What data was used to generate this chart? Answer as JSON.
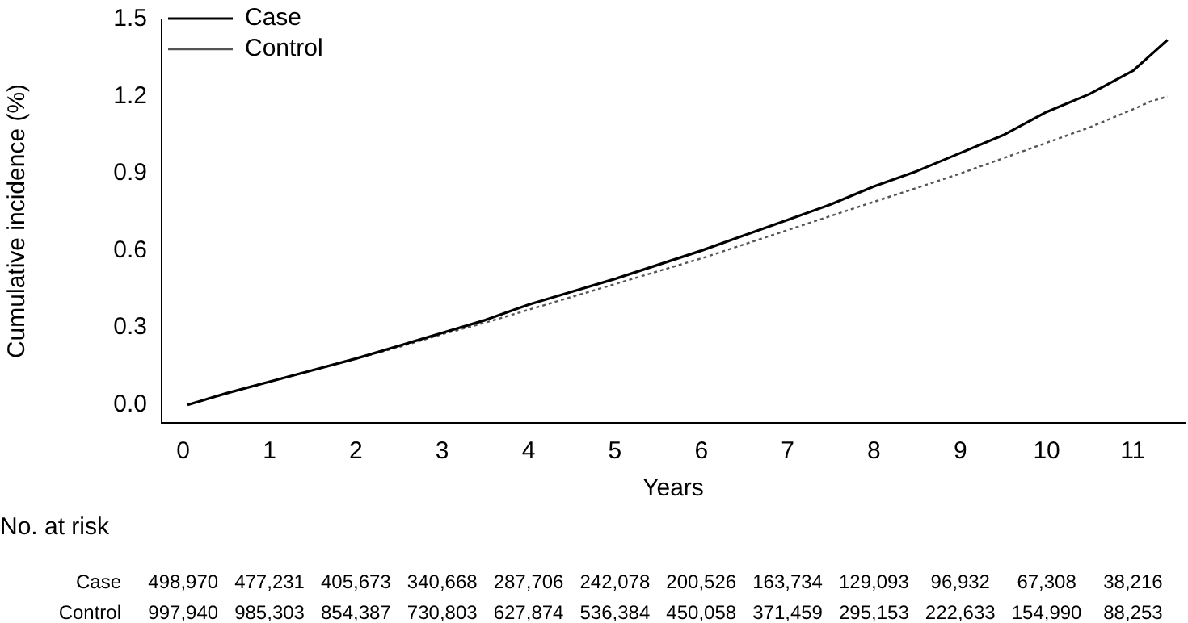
{
  "chart_data": {
    "type": "line",
    "xlabel": "Years",
    "ylabel": "Cumulative incidence (%)",
    "xlim": [
      -0.25,
      11.6
    ],
    "xticks": [
      0,
      1,
      2,
      3,
      4,
      5,
      6,
      7,
      8,
      9,
      10,
      11
    ],
    "ylim": [
      -0.07,
      1.5
    ],
    "yticks": [
      {
        "value": 0,
        "label": "0.0"
      },
      {
        "value": 0.3,
        "label": "0.3"
      },
      {
        "value": 0.6,
        "label": "0.6"
      },
      {
        "value": 0.9,
        "label": "0.9"
      },
      {
        "value": 1.2,
        "label": "1.2"
      },
      {
        "value": 1.5,
        "label": "1.5"
      }
    ],
    "x": [
      0.05,
      0.5,
      1,
      1.5,
      2,
      2.5,
      3,
      3.5,
      4,
      4.5,
      5,
      5.5,
      6,
      6.5,
      7,
      7.5,
      8,
      8.5,
      9,
      9.5,
      10,
      10.5,
      11,
      11.2,
      11.4
    ],
    "series": [
      {
        "name": "Case",
        "color": "#000000",
        "line_style": "solid",
        "values": [
          0,
          0.045,
          0.09,
          0.135,
          0.18,
          0.23,
          0.28,
          0.33,
          0.39,
          0.44,
          0.49,
          0.545,
          0.6,
          0.66,
          0.72,
          0.78,
          0.85,
          0.91,
          0.98,
          1.05,
          1.14,
          1.21,
          1.3,
          1.36,
          1.42
        ]
      },
      {
        "name": "Control",
        "color": "#555555",
        "line_style": "dotted",
        "values": [
          0,
          0.045,
          0.09,
          0.135,
          0.18,
          0.225,
          0.275,
          0.32,
          0.37,
          0.42,
          0.47,
          0.52,
          0.57,
          0.625,
          0.68,
          0.735,
          0.79,
          0.845,
          0.9,
          0.96,
          1.02,
          1.08,
          1.15,
          1.18,
          1.2
        ]
      }
    ],
    "legend": "top left",
    "grid": false,
    "annotations": [
      "No. at risk",
      "Case",
      "498,970",
      "477,231",
      "405,673",
      "340,668",
      "287,706",
      "242,078",
      "200,526",
      "163,734",
      "129,093",
      "96,932",
      "67,308",
      "38,216",
      "Control",
      "997,940",
      "985,303",
      "854,387",
      "730,803",
      "627,874",
      "536,384",
      "450,058",
      "371,459",
      "295,153",
      "222,633",
      "154,990",
      "88,253"
    ]
  }
}
